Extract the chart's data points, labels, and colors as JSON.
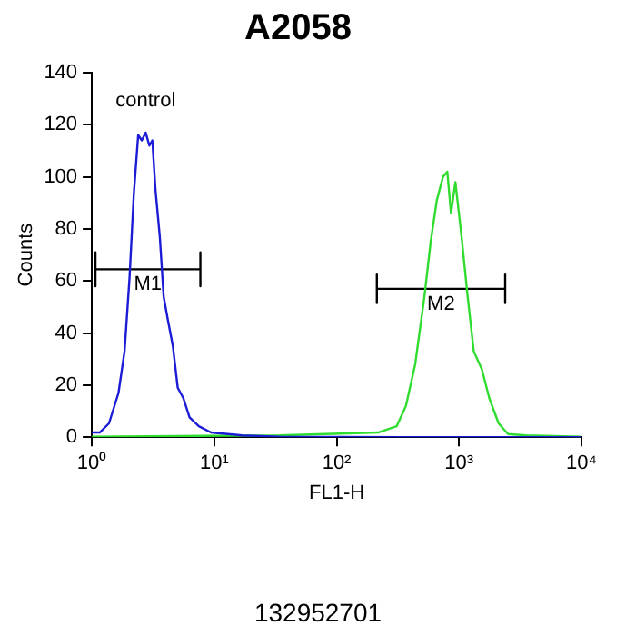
{
  "chart_data": {
    "type": "line",
    "title": "A2058",
    "xlabel": "FL1-H",
    "ylabel": "Counts",
    "log": "x",
    "marker": "none",
    "legend": false,
    "grid": false,
    "xlim": [
      1,
      10000
    ],
    "xticks": [
      {
        "value": 1,
        "label": "10⁰"
      },
      {
        "value": 10,
        "label": "10¹"
      },
      {
        "value": 100,
        "label": "10²"
      },
      {
        "value": 1000,
        "label": "10³"
      },
      {
        "value": 10000,
        "label": "10⁴"
      }
    ],
    "ylim": [
      0,
      140
    ],
    "yticks": [
      0,
      20,
      40,
      60,
      80,
      100,
      120,
      140
    ],
    "series": [
      {
        "name": "control",
        "color": "#1c1cd6",
        "x": [
          1,
          1.16,
          1.38,
          1.65,
          1.85,
          2.03,
          2.2,
          2.39,
          2.56,
          2.75,
          2.95,
          3.12,
          3.31,
          3.59,
          3.86,
          4.18,
          4.59,
          5.03,
          5.59,
          6.28,
          7.48,
          9.4,
          16.9,
          34,
          347,
          10000
        ],
        "values": [
          1.8,
          1.8,
          5.3,
          17,
          33,
          61,
          93,
          116,
          114,
          117,
          112,
          114,
          95,
          77,
          54,
          45,
          35,
          19,
          15,
          7.6,
          4.2,
          1.8,
          0.7,
          0.2,
          0,
          0
        ]
      },
      {
        "color": "#2fdc2f",
        "x": [
          1,
          34,
          108,
          218,
          309,
          368,
          438,
          521,
          586,
          658,
          739,
          801,
          859,
          933,
          1048,
          1175,
          1318,
          1538,
          1766,
          2104,
          2512,
          3550,
          10000
        ],
        "values": [
          0.2,
          0.7,
          1.4,
          1.8,
          4.2,
          12,
          28,
          54,
          75,
          91,
          100,
          102,
          86,
          98,
          77,
          54,
          33,
          26,
          15,
          5.3,
          1.2,
          0.7,
          0.2
        ]
      },
      {
        "type": "line",
        "name": "M1",
        "color": "#000000",
        "x": [
          1.07,
          1.07,
          1.07,
          7.7,
          7.7,
          7.7
        ],
        "values": [
          71,
          58,
          64.5,
          64.5,
          71,
          58
        ]
      },
      {
        "type": "line",
        "name": "M2",
        "color": "#000000",
        "x": [
          213,
          213,
          213,
          2380,
          2380,
          2380
        ],
        "values": [
          62.5,
          51.5,
          57,
          57,
          62.5,
          51.5
        ]
      }
    ],
    "annotations": [
      "132952701"
    ]
  }
}
